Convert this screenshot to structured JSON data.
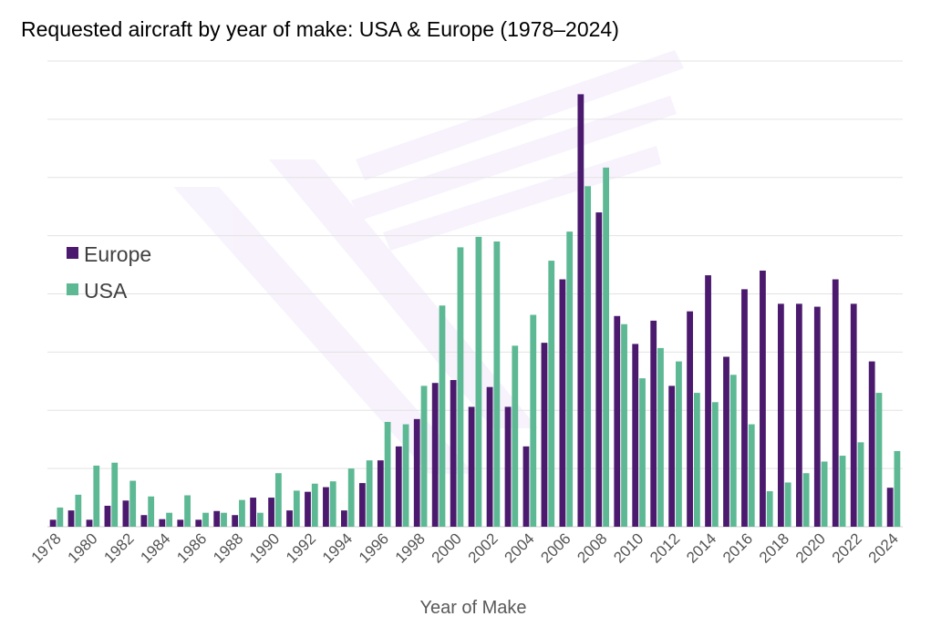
{
  "chart_data": {
    "type": "bar",
    "title": "Requested aircraft by year of make: USA & Europe (1978–2024)",
    "xlabel": "Year of Make",
    "ylabel": "",
    "ylim": [
      0,
      8
    ],
    "grid": true,
    "legend_position": "left-middle",
    "categories": [
      "1978",
      "1979",
      "1980",
      "1981",
      "1982",
      "1983",
      "1984",
      "1985",
      "1986",
      "1987",
      "1988",
      "1989",
      "1990",
      "1991",
      "1992",
      "1993",
      "1994",
      "1995",
      "1996",
      "1997",
      "1998",
      "1999",
      "2000",
      "2001",
      "2002",
      "2003",
      "2004",
      "2005",
      "2006",
      "2007",
      "2008",
      "2009",
      "2010",
      "2011",
      "2012",
      "2013",
      "2014",
      "2015",
      "2016",
      "2017",
      "2018",
      "2019",
      "2020",
      "2021",
      "2022",
      "2023",
      "2024"
    ],
    "tick_labels": [
      "1978",
      "1980",
      "1982",
      "1984",
      "1986",
      "1988",
      "1990",
      "1992",
      "1994",
      "1996",
      "1998",
      "2000",
      "2002",
      "2004",
      "2006",
      "2008",
      "2010",
      "2012",
      "2014",
      "2016",
      "2018",
      "2020",
      "2022",
      "2024"
    ],
    "series": [
      {
        "name": "Europe",
        "color": "#4b1a6e",
        "values": [
          0.12,
          0.28,
          0.12,
          0.36,
          0.45,
          0.2,
          0.13,
          0.12,
          0.12,
          0.27,
          0.2,
          0.5,
          0.5,
          0.28,
          0.6,
          0.68,
          0.28,
          0.75,
          1.14,
          1.38,
          1.85,
          2.47,
          2.52,
          2.06,
          2.4,
          2.06,
          1.38,
          3.16,
          4.25,
          7.43,
          5.4,
          3.62,
          3.14,
          3.54,
          2.42,
          3.7,
          4.32,
          2.92,
          4.08,
          4.4,
          3.83,
          3.83,
          3.78,
          4.25,
          3.83,
          2.84,
          0.67
        ]
      },
      {
        "name": "USA",
        "color": "#5db894",
        "values": [
          0.33,
          0.55,
          1.05,
          1.1,
          0.79,
          0.52,
          0.24,
          0.54,
          0.24,
          0.24,
          0.46,
          0.24,
          0.92,
          0.62,
          0.74,
          0.78,
          1.0,
          1.14,
          1.8,
          1.76,
          2.42,
          3.8,
          4.8,
          4.98,
          4.9,
          3.11,
          3.64,
          4.57,
          5.07,
          5.85,
          6.17,
          3.48,
          2.55,
          3.07,
          2.84,
          2.3,
          2.14,
          2.61,
          1.76,
          0.61,
          0.76,
          0.92,
          1.12,
          1.22,
          1.45,
          2.3,
          1.3
        ]
      }
    ]
  }
}
